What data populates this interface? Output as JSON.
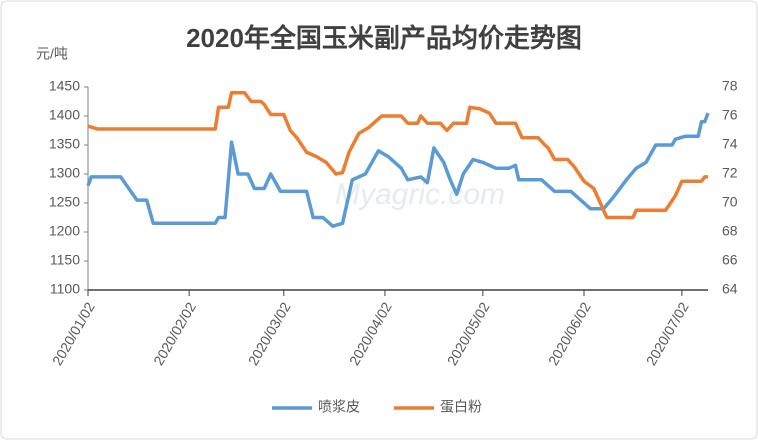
{
  "chart_data": {
    "type": "line",
    "title": "2020年全国玉米副产品均价走势图",
    "y_label": "元/吨",
    "watermark": "Myagric.com",
    "xlim": [
      "2020/01/02",
      "2020/07/10"
    ],
    "xticks": [
      "2020/01/02",
      "2020/02/02",
      "2020/03/02",
      "2020/04/02",
      "2020/05/02",
      "2020/06/02",
      "2020/07/02"
    ],
    "ylim": [
      1100,
      1450
    ],
    "yticks": [
      1100,
      1150,
      1200,
      1250,
      1300,
      1350,
      1400,
      1450
    ],
    "y2lim": [
      64,
      78
    ],
    "y2ticks": [
      64,
      66,
      68,
      70,
      72,
      74,
      76,
      78
    ],
    "grid": false,
    "legend": "bottom",
    "series": [
      {
        "name": "喷浆皮",
        "color": "#5b9bd5",
        "axis": "y",
        "x": [
          "2020/01/02",
          "2020/01/03",
          "2020/01/12",
          "2020/01/17",
          "2020/01/20",
          "2020/01/22",
          "2020/02/10",
          "2020/02/11",
          "2020/02/13",
          "2020/02/15",
          "2020/02/17",
          "2020/02/20",
          "2020/02/22",
          "2020/02/25",
          "2020/02/27",
          "2020/03/01",
          "2020/03/09",
          "2020/03/11",
          "2020/03/14",
          "2020/03/17",
          "2020/03/20",
          "2020/03/23",
          "2020/03/27",
          "2020/03/31",
          "2020/04/03",
          "2020/04/07",
          "2020/04/09",
          "2020/04/13",
          "2020/04/15",
          "2020/04/17",
          "2020/04/20",
          "2020/04/22",
          "2020/04/24",
          "2020/04/26",
          "2020/04/29",
          "2020/05/02",
          "2020/05/06",
          "2020/05/10",
          "2020/05/12",
          "2020/05/13",
          "2020/05/20",
          "2020/05/24",
          "2020/05/29",
          "2020/06/01",
          "2020/06/04",
          "2020/06/08",
          "2020/06/11",
          "2020/06/15",
          "2020/06/18",
          "2020/06/21",
          "2020/06/24",
          "2020/06/29",
          "2020/06/30",
          "2020/07/03",
          "2020/07/07",
          "2020/07/08",
          "2020/07/09",
          "2020/07/10"
        ],
        "values": [
          1280,
          1295,
          1295,
          1255,
          1255,
          1215,
          1215,
          1225,
          1225,
          1355,
          1300,
          1300,
          1275,
          1275,
          1300,
          1270,
          1270,
          1225,
          1225,
          1210,
          1215,
          1290,
          1300,
          1340,
          1330,
          1310,
          1290,
          1295,
          1285,
          1345,
          1320,
          1290,
          1265,
          1300,
          1325,
          1320,
          1310,
          1310,
          1315,
          1290,
          1290,
          1270,
          1270,
          1255,
          1240,
          1240,
          1260,
          1290,
          1310,
          1320,
          1350,
          1350,
          1360,
          1365,
          1365,
          1390,
          1390,
          1405
        ]
      },
      {
        "name": "蛋白粉",
        "color": "#ed7d31",
        "axis": "y2",
        "x": [
          "2020/01/02",
          "2020/01/05",
          "2020/02/10",
          "2020/02/11",
          "2020/02/14",
          "2020/02/15",
          "2020/02/19",
          "2020/02/21",
          "2020/02/24",
          "2020/02/25",
          "2020/02/27",
          "2020/03/02",
          "2020/03/04",
          "2020/03/06",
          "2020/03/09",
          "2020/03/12",
          "2020/03/15",
          "2020/03/18",
          "2020/03/20",
          "2020/03/22",
          "2020/03/25",
          "2020/03/28",
          "2020/04/01",
          "2020/04/07",
          "2020/04/09",
          "2020/04/12",
          "2020/04/13",
          "2020/04/15",
          "2020/04/19",
          "2020/04/21",
          "2020/04/23",
          "2020/04/27",
          "2020/04/28",
          "2020/05/01",
          "2020/05/04",
          "2020/05/06",
          "2020/05/12",
          "2020/05/14",
          "2020/05/19",
          "2020/05/21",
          "2020/05/22",
          "2020/05/24",
          "2020/05/28",
          "2020/05/30",
          "2020/06/02",
          "2020/06/05",
          "2020/06/07",
          "2020/06/09",
          "2020/06/17",
          "2020/06/18",
          "2020/06/27",
          "2020/06/30",
          "2020/07/02",
          "2020/07/08",
          "2020/07/09",
          "2020/07/10"
        ],
        "values": [
          75.3,
          75.1,
          75.1,
          76.6,
          76.6,
          77.6,
          77.6,
          77,
          77,
          76.8,
          76.1,
          76.1,
          75,
          74.5,
          73.5,
          73.2,
          72.8,
          72,
          72.1,
          73.5,
          74.8,
          75.2,
          76,
          76,
          75.5,
          75.5,
          76,
          75.5,
          75.5,
          75,
          75.5,
          75.5,
          76.6,
          76.5,
          76.2,
          75.5,
          75.5,
          74.5,
          74.5,
          74,
          73.8,
          73,
          73,
          72.5,
          71.5,
          71,
          70,
          69,
          69,
          69.5,
          69.5,
          70.5,
          71.5,
          71.5,
          71.8,
          71.8
        ]
      }
    ]
  }
}
